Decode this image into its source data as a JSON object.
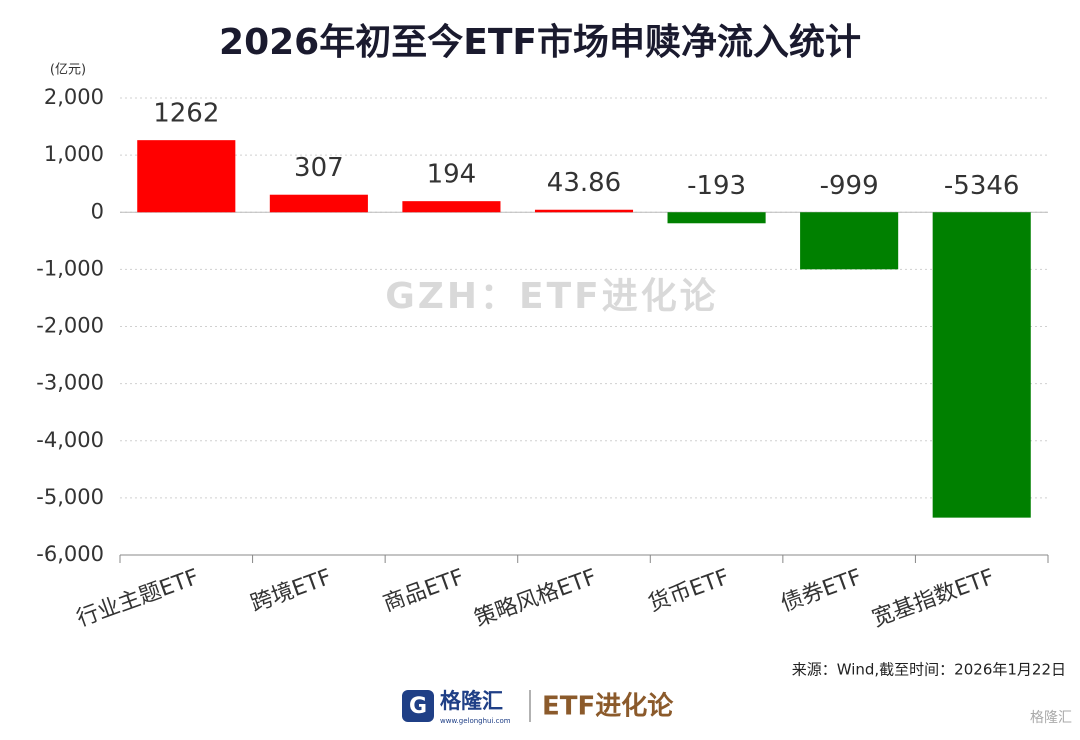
{
  "chart_data": {
    "type": "bar",
    "title": "2026年初至今ETF市场申赎净流入统计",
    "y_unit": "(亿元)",
    "categories": [
      "行业主题ETF",
      "跨境ETF",
      "商品ETF",
      "策略风格ETF",
      "货币ETF",
      "债券ETF",
      "宽基指数ETF"
    ],
    "values": [
      1262,
      307,
      194,
      43.86,
      -193,
      -999,
      -5346
    ],
    "color_positive": "#ff0000",
    "color_negative": "#008000",
    "ylim": [
      -6000,
      2000
    ],
    "yticks": [
      {
        "value": -6000,
        "label": "-6,000"
      },
      {
        "value": -5000,
        "label": "-5,000"
      },
      {
        "value": -4000,
        "label": "-4,000"
      },
      {
        "value": -3000,
        "label": "-3,000"
      },
      {
        "value": -2000,
        "label": "-2,000"
      },
      {
        "value": -1000,
        "label": "-1,000"
      },
      0,
      {
        "value": 1000,
        "label": "1,000"
      },
      {
        "value": 2000,
        "label": "2,000"
      }
    ],
    "grid": true,
    "watermark": "GZH：ETF进化论",
    "source": "来源：Wind,截至时间：2026年1月22日"
  },
  "branding": {
    "logo": "格隆汇",
    "site": "www.gelonghui.com",
    "account": "ETF进化论",
    "corner": "格隆汇"
  }
}
